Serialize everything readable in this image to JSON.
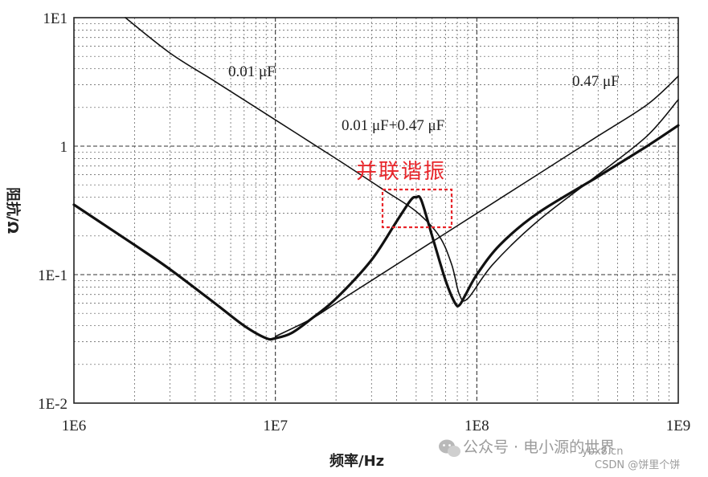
{
  "chart_data": {
    "type": "line",
    "xscale": "log",
    "yscale": "log",
    "xlim": [
      1000000,
      1000000000
    ],
    "ylim": [
      0.01,
      10
    ],
    "xlabel": "频率/Hz",
    "ylabel": "阻抗/Ω",
    "x_ticks": [
      "1E6",
      "1E7",
      "1E8",
      "1E9"
    ],
    "y_ticks": [
      "1E-2",
      "1E-1",
      "1",
      "1E1"
    ],
    "grid": true,
    "series": [
      {
        "name": "0.01 μF",
        "x": [
          1800000,
          3000000,
          5000000,
          10000000,
          20000000,
          35000000,
          50000000,
          65000000,
          75000000,
          82000000,
          90000000,
          120000000,
          200000000,
          400000000,
          700000000,
          1000000000
        ],
        "y": [
          10,
          5.3,
          3.2,
          1.6,
          0.8,
          0.45,
          0.31,
          0.2,
          0.12,
          0.07,
          0.065,
          0.12,
          0.26,
          0.6,
          1.2,
          2.3
        ]
      },
      {
        "name": "0.47 μF",
        "x": [
          10000000,
          15000000,
          20000000,
          30000000,
          50000000,
          100000000,
          200000000,
          400000000,
          700000000,
          1000000000
        ],
        "y": [
          0.033,
          0.045,
          0.06,
          0.09,
          0.15,
          0.3,
          0.6,
          1.2,
          2.1,
          3.5
        ]
      },
      {
        "name": "0.01 μF+0.47 μF",
        "x": [
          1000000,
          2000000,
          3000000,
          5000000,
          7000000,
          9000000,
          10000000,
          12000000,
          15000000,
          20000000,
          30000000,
          40000000,
          47000000,
          50000000,
          53000000,
          60000000,
          70000000,
          78000000,
          82000000,
          88000000,
          100000000,
          130000000,
          200000000,
          400000000,
          700000000,
          1000000000
        ],
        "y": [
          0.35,
          0.17,
          0.11,
          0.06,
          0.04,
          0.032,
          0.032,
          0.035,
          0.045,
          0.065,
          0.13,
          0.26,
          0.38,
          0.4,
          0.38,
          0.2,
          0.09,
          0.06,
          0.058,
          0.07,
          0.1,
          0.17,
          0.3,
          0.58,
          1.0,
          1.45
        ]
      }
    ],
    "annotation": "并联谐振"
  },
  "watermark": {
    "wechat": "公众号 · 电小源的世界",
    "site": "ybx8.cn",
    "csdn": "CSDN @饼里个饼"
  }
}
